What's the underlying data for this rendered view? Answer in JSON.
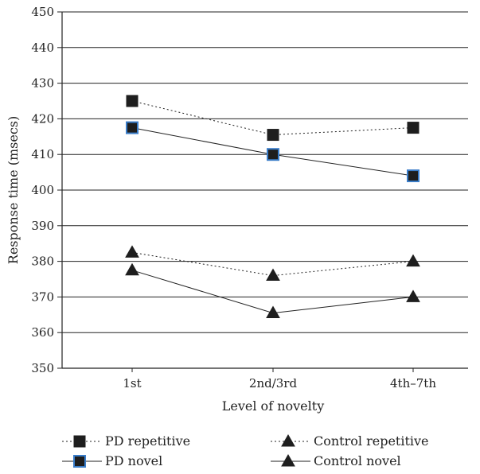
{
  "chart_data": {
    "type": "line",
    "xlabel": "Level of novelty",
    "ylabel": "Response time (msecs)",
    "categories": [
      "1st",
      "2nd/3rd",
      "4th–7th"
    ],
    "ylim": [
      350,
      450
    ],
    "yticks": [
      350,
      360,
      370,
      380,
      390,
      400,
      410,
      420,
      430,
      440,
      450
    ],
    "grid": true,
    "legend_position": "bottom",
    "series": [
      {
        "name": "PD repetitive",
        "values": [
          425,
          415.5,
          417.5
        ],
        "marker": "square",
        "line": "dotted",
        "marker_fill": "#1e1e1e",
        "marker_stroke": "#1e1e1e"
      },
      {
        "name": "PD novel",
        "values": [
          417.5,
          410,
          404
        ],
        "marker": "square",
        "line": "solid",
        "marker_fill": "#1e1e1e",
        "marker_stroke": "#3a7dc9"
      },
      {
        "name": "Control repetitive",
        "values": [
          382.5,
          376,
          380
        ],
        "marker": "triangle",
        "line": "dotted",
        "marker_fill": "#1e1e1e",
        "marker_stroke": "#1e1e1e"
      },
      {
        "name": "Control novel",
        "values": [
          377.5,
          365.5,
          370
        ],
        "marker": "triangle",
        "line": "solid",
        "marker_fill": "#1e1e1e",
        "marker_stroke": "#1e1e1e"
      }
    ]
  }
}
